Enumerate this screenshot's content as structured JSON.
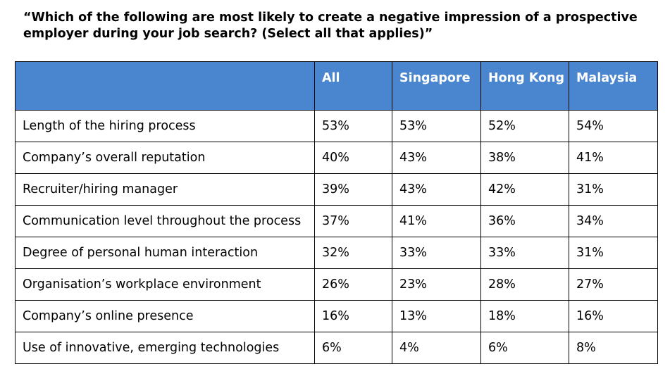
{
  "question": "“Which of the following are most likely to create a negative impression of a prospective employer during your job search? (Select all that applies)”",
  "colors": {
    "header_background": "#4a86cf",
    "header_text": "#ffffff",
    "border": "#000000"
  },
  "table": {
    "headers": [
      "",
      "All",
      "Singapore",
      "Hong Kong",
      "Malaysia"
    ],
    "rows": [
      {
        "label": "Length of the hiring process",
        "all": "53%",
        "singapore": "53%",
        "hong_kong": "52%",
        "malaysia": "54%"
      },
      {
        "label": "Company’s overall reputation",
        "all": "40%",
        "singapore": "43%",
        "hong_kong": "38%",
        "malaysia": "41%"
      },
      {
        "label": "Recruiter/hiring manager",
        "all": "39%",
        "singapore": "43%",
        "hong_kong": "42%",
        "malaysia": "31%"
      },
      {
        "label": "Communication level throughout the process",
        "all": "37%",
        "singapore": "41%",
        "hong_kong": "36%",
        "malaysia": "34%"
      },
      {
        "label": "Degree of personal human interaction",
        "all": "32%",
        "singapore": "33%",
        "hong_kong": "33%",
        "malaysia": "31%"
      },
      {
        "label": "Organisation’s workplace environment",
        "all": "26%",
        "singapore": "23%",
        "hong_kong": "28%",
        "malaysia": "27%"
      },
      {
        "label": "Company’s online presence",
        "all": "16%",
        "singapore": "13%",
        "hong_kong": "18%",
        "malaysia": "16%"
      },
      {
        "label": "Use of innovative, emerging technologies",
        "all": "6%",
        "singapore": "4%",
        "hong_kong": "6%",
        "malaysia": "8%"
      }
    ]
  }
}
